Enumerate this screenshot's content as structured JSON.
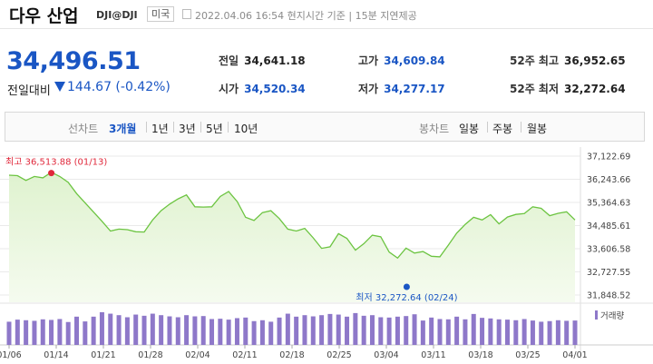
{
  "header": {
    "title": "다우 산업",
    "code": "DJI@DJI",
    "nation": "미국",
    "meta": "2022.04.06 16:54 현지시간 기준  |  15분 지연제공"
  },
  "quote": {
    "price": "34,496.51",
    "change_label": "전일대비",
    "change_value": "144.67 (-0.42%)",
    "stats": [
      {
        "label": "전일",
        "value": "34,641.18",
        "color": "dark"
      },
      {
        "label": "고가",
        "value": "34,609.84",
        "color": "blue"
      },
      {
        "label": "52주 최고",
        "value": "36,952.65",
        "color": "dark"
      },
      {
        "label": "시가",
        "value": "34,520.34",
        "color": "blue"
      },
      {
        "label": "저가",
        "value": "34,277.17",
        "color": "blue"
      },
      {
        "label": "52주 최저",
        "value": "32,272.64",
        "color": "dark"
      }
    ]
  },
  "tabs": {
    "line_group": "선차트",
    "line_items": [
      "3개월",
      "1년",
      "3년",
      "5년",
      "10년"
    ],
    "line_selected": "3개월",
    "candle_group": "봉차트",
    "candle_items": [
      "일봉",
      "주봉",
      "월봉"
    ]
  },
  "chart_data": {
    "type": "area",
    "y_ticks": [
      "37,122.69",
      "36,243.66",
      "35,364.63",
      "34,485.61",
      "33,606.58",
      "32,727.55",
      "31,848.52"
    ],
    "ylim": [
      31848.52,
      37122.69
    ],
    "x_labels": [
      "01/06",
      "01/14",
      "01/21",
      "01/28",
      "02/04",
      "02/11",
      "02/18",
      "02/25",
      "03/04",
      "03/11",
      "03/18",
      "03/25",
      "04/01"
    ],
    "high_label": "최고 36,513.88 (01/13)",
    "low_label": "최저 32,272.64 (02/24)",
    "volume_label": "거래량",
    "colors": {
      "line": "#6cc441",
      "fill_top": "#dff2cf",
      "fill_bottom": "#f5fbef",
      "volume": "#8e78c9",
      "high": "#e0283b",
      "low": "#1a56c4"
    },
    "values": [
      36400,
      36380,
      36200,
      36350,
      36300,
      36514,
      36350,
      36130,
      35700,
      35350,
      35000,
      34650,
      34280,
      34350,
      34330,
      34250,
      34240,
      34700,
      35050,
      35300,
      35500,
      35650,
      35200,
      35190,
      35200,
      35590,
      35780,
      35400,
      34800,
      34680,
      34980,
      35050,
      34750,
      34350,
      34280,
      34380,
      34020,
      33620,
      33680,
      34180,
      34000,
      33550,
      33800,
      34120,
      34060,
      33480,
      33250,
      33630,
      33440,
      33500,
      33320,
      33300,
      33740,
      34200,
      34530,
      34800,
      34700,
      34900,
      34550,
      34810,
      34910,
      34940,
      35200,
      35140,
      34860,
      34950,
      35010,
      34700
    ],
    "volumes": [
      0.78,
      0.85,
      0.83,
      0.81,
      0.86,
      0.84,
      0.87,
      0.77,
      0.95,
      0.79,
      0.95,
      1.1,
      1.05,
      1.0,
      0.93,
      1.02,
      0.98,
      1.05,
      1.0,
      0.96,
      0.93,
      1.0,
      0.96,
      0.97,
      0.87,
      0.88,
      0.85,
      0.9,
      0.92,
      0.8,
      0.83,
      0.78,
      0.92,
      1.05,
      0.95,
      1.0,
      0.96,
      1.0,
      1.04,
      1.02,
      0.95,
      1.07,
      0.98,
      1.0,
      0.93,
      0.92,
      0.95,
      0.97,
      1.03,
      0.82,
      0.92,
      0.87,
      0.86,
      0.95,
      0.86,
      1.04,
      0.91,
      0.89,
      0.86,
      0.85,
      0.83,
      0.87,
      0.82,
      0.78,
      0.8,
      0.83,
      0.81,
      0.82
    ]
  }
}
